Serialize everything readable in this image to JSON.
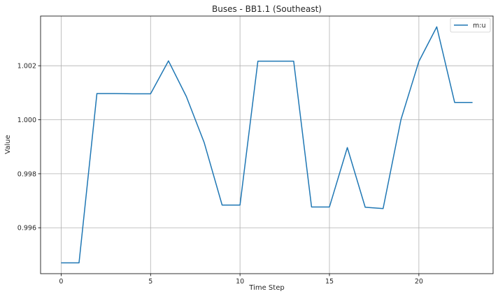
{
  "chart_data": {
    "type": "line",
    "title": "Buses - BB1.1 (Southeast)",
    "xlabel": "Time Step",
    "ylabel": "Value",
    "x": [
      0,
      1,
      2,
      3,
      4,
      5,
      6,
      7,
      8,
      9,
      10,
      11,
      12,
      13,
      14,
      15,
      16,
      17,
      18,
      19,
      20,
      21,
      22,
      23
    ],
    "series": [
      {
        "name": "m:u",
        "color": "#1f77b4",
        "values": [
          0.9947,
          0.9947,
          1.00097,
          1.00097,
          1.00096,
          1.00096,
          1.00218,
          1.00086,
          0.99915,
          0.99684,
          0.99684,
          1.00217,
          1.00217,
          1.00217,
          0.99677,
          0.99677,
          0.99897,
          0.99676,
          0.99671,
          1.00001,
          1.00216,
          1.00344,
          1.00064,
          1.00064
        ]
      }
    ],
    "xlim": [
      -1.15,
      24.15
    ],
    "ylim": [
      0.9943,
      1.00384
    ],
    "xticks": [
      0,
      5,
      10,
      15,
      20
    ],
    "xtick_labels": [
      "0",
      "5",
      "10",
      "15",
      "20"
    ],
    "yticks": [
      0.996,
      0.998,
      1.0,
      1.002
    ],
    "ytick_labels": [
      "0.996",
      "0.998",
      "1.000",
      "1.002"
    ],
    "grid": true,
    "legend_position": "top-right"
  }
}
